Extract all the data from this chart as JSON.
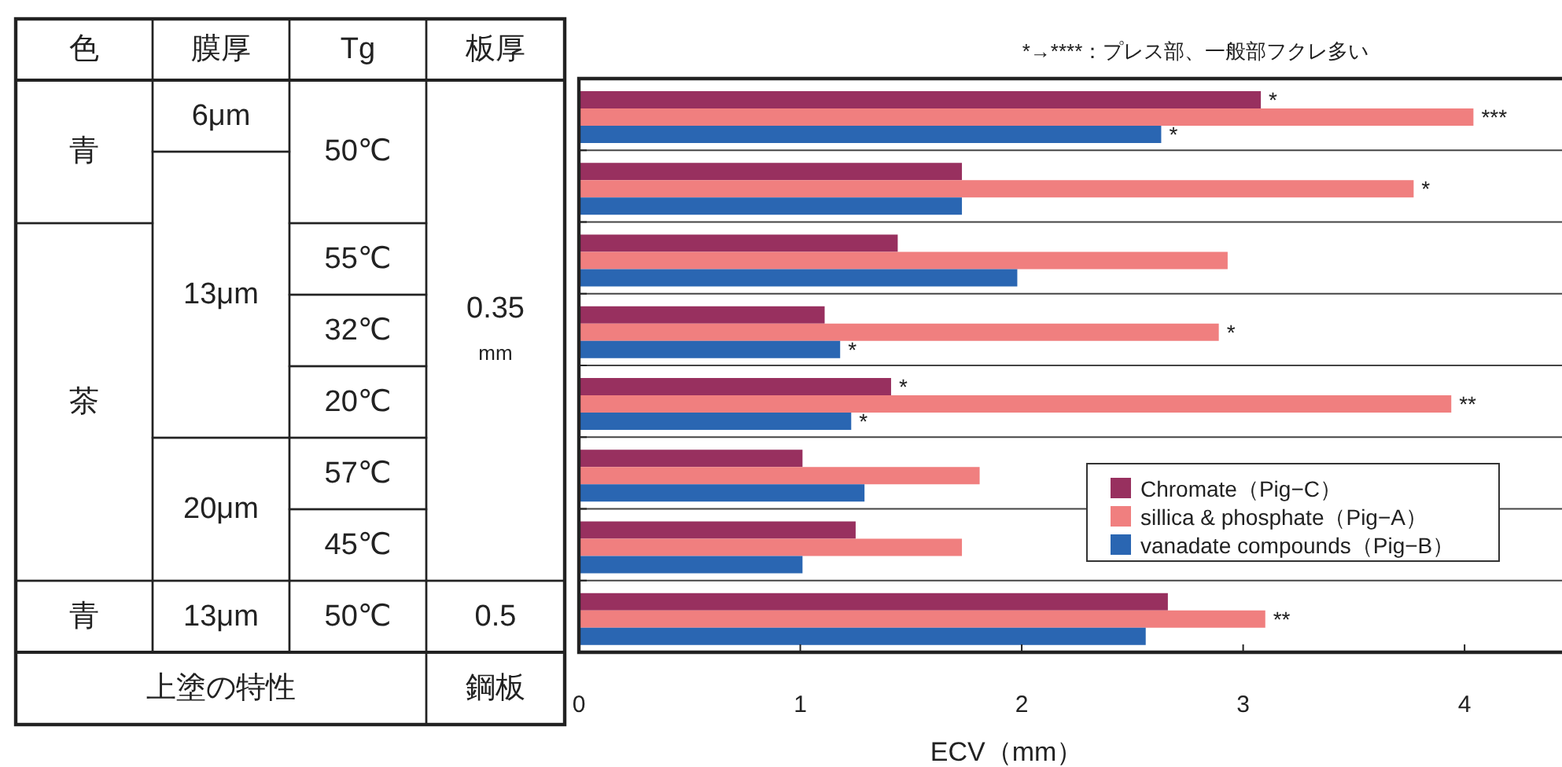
{
  "chart_data": [
    {
      "type": "other",
      "annotations": [
        "色",
        "膜厚",
        "Tg",
        "板厚",
        "青",
        "6μm",
        "50℃",
        "0.35",
        "mm",
        "13μm",
        "茶",
        "55℃",
        "32℃",
        "20℃",
        "20μm",
        "57℃",
        "45℃",
        "青",
        "13μm",
        "50℃",
        "0.5",
        "上塗の特性",
        "鋼板"
      ]
    },
    {
      "type": "bar",
      "orientation": "horizontal",
      "categories": [
        null,
        null,
        null,
        null,
        null,
        null,
        null,
        null
      ],
      "series": [
        {
          "name": "Chromate（Pig−C）",
          "color": "#98305f",
          "values": [
            3.08,
            1.73,
            1.44,
            1.11,
            1.41,
            1.01,
            1.25,
            2.66
          ],
          "value_labels": [
            "*",
            null,
            null,
            null,
            "*",
            null,
            null,
            null
          ]
        },
        {
          "name": "sillica & phosphate（Pig−A）",
          "color": "#f07f7f",
          "values": [
            4.04,
            3.77,
            2.93,
            2.89,
            3.94,
            1.81,
            1.73,
            3.1
          ],
          "value_labels": [
            "***",
            "*",
            null,
            "*",
            "**",
            null,
            null,
            "**"
          ]
        },
        {
          "name": "vanadate  compounds（Pig−B）",
          "color": "#2a66b2",
          "values": [
            2.63,
            1.73,
            1.98,
            1.18,
            1.23,
            1.29,
            1.01,
            2.56
          ],
          "value_labels": [
            "*",
            null,
            null,
            "*",
            "*",
            null,
            null,
            null
          ]
        }
      ],
      "xlim": [
        0,
        4.44
      ],
      "xticks": [
        0,
        1,
        2,
        3,
        4
      ],
      "xlabel": "ECV（mm）",
      "grid": "y",
      "legend": "bottom right",
      "annotations": [
        "*→****：プレス部、一般部フクレ多い"
      ]
    }
  ]
}
